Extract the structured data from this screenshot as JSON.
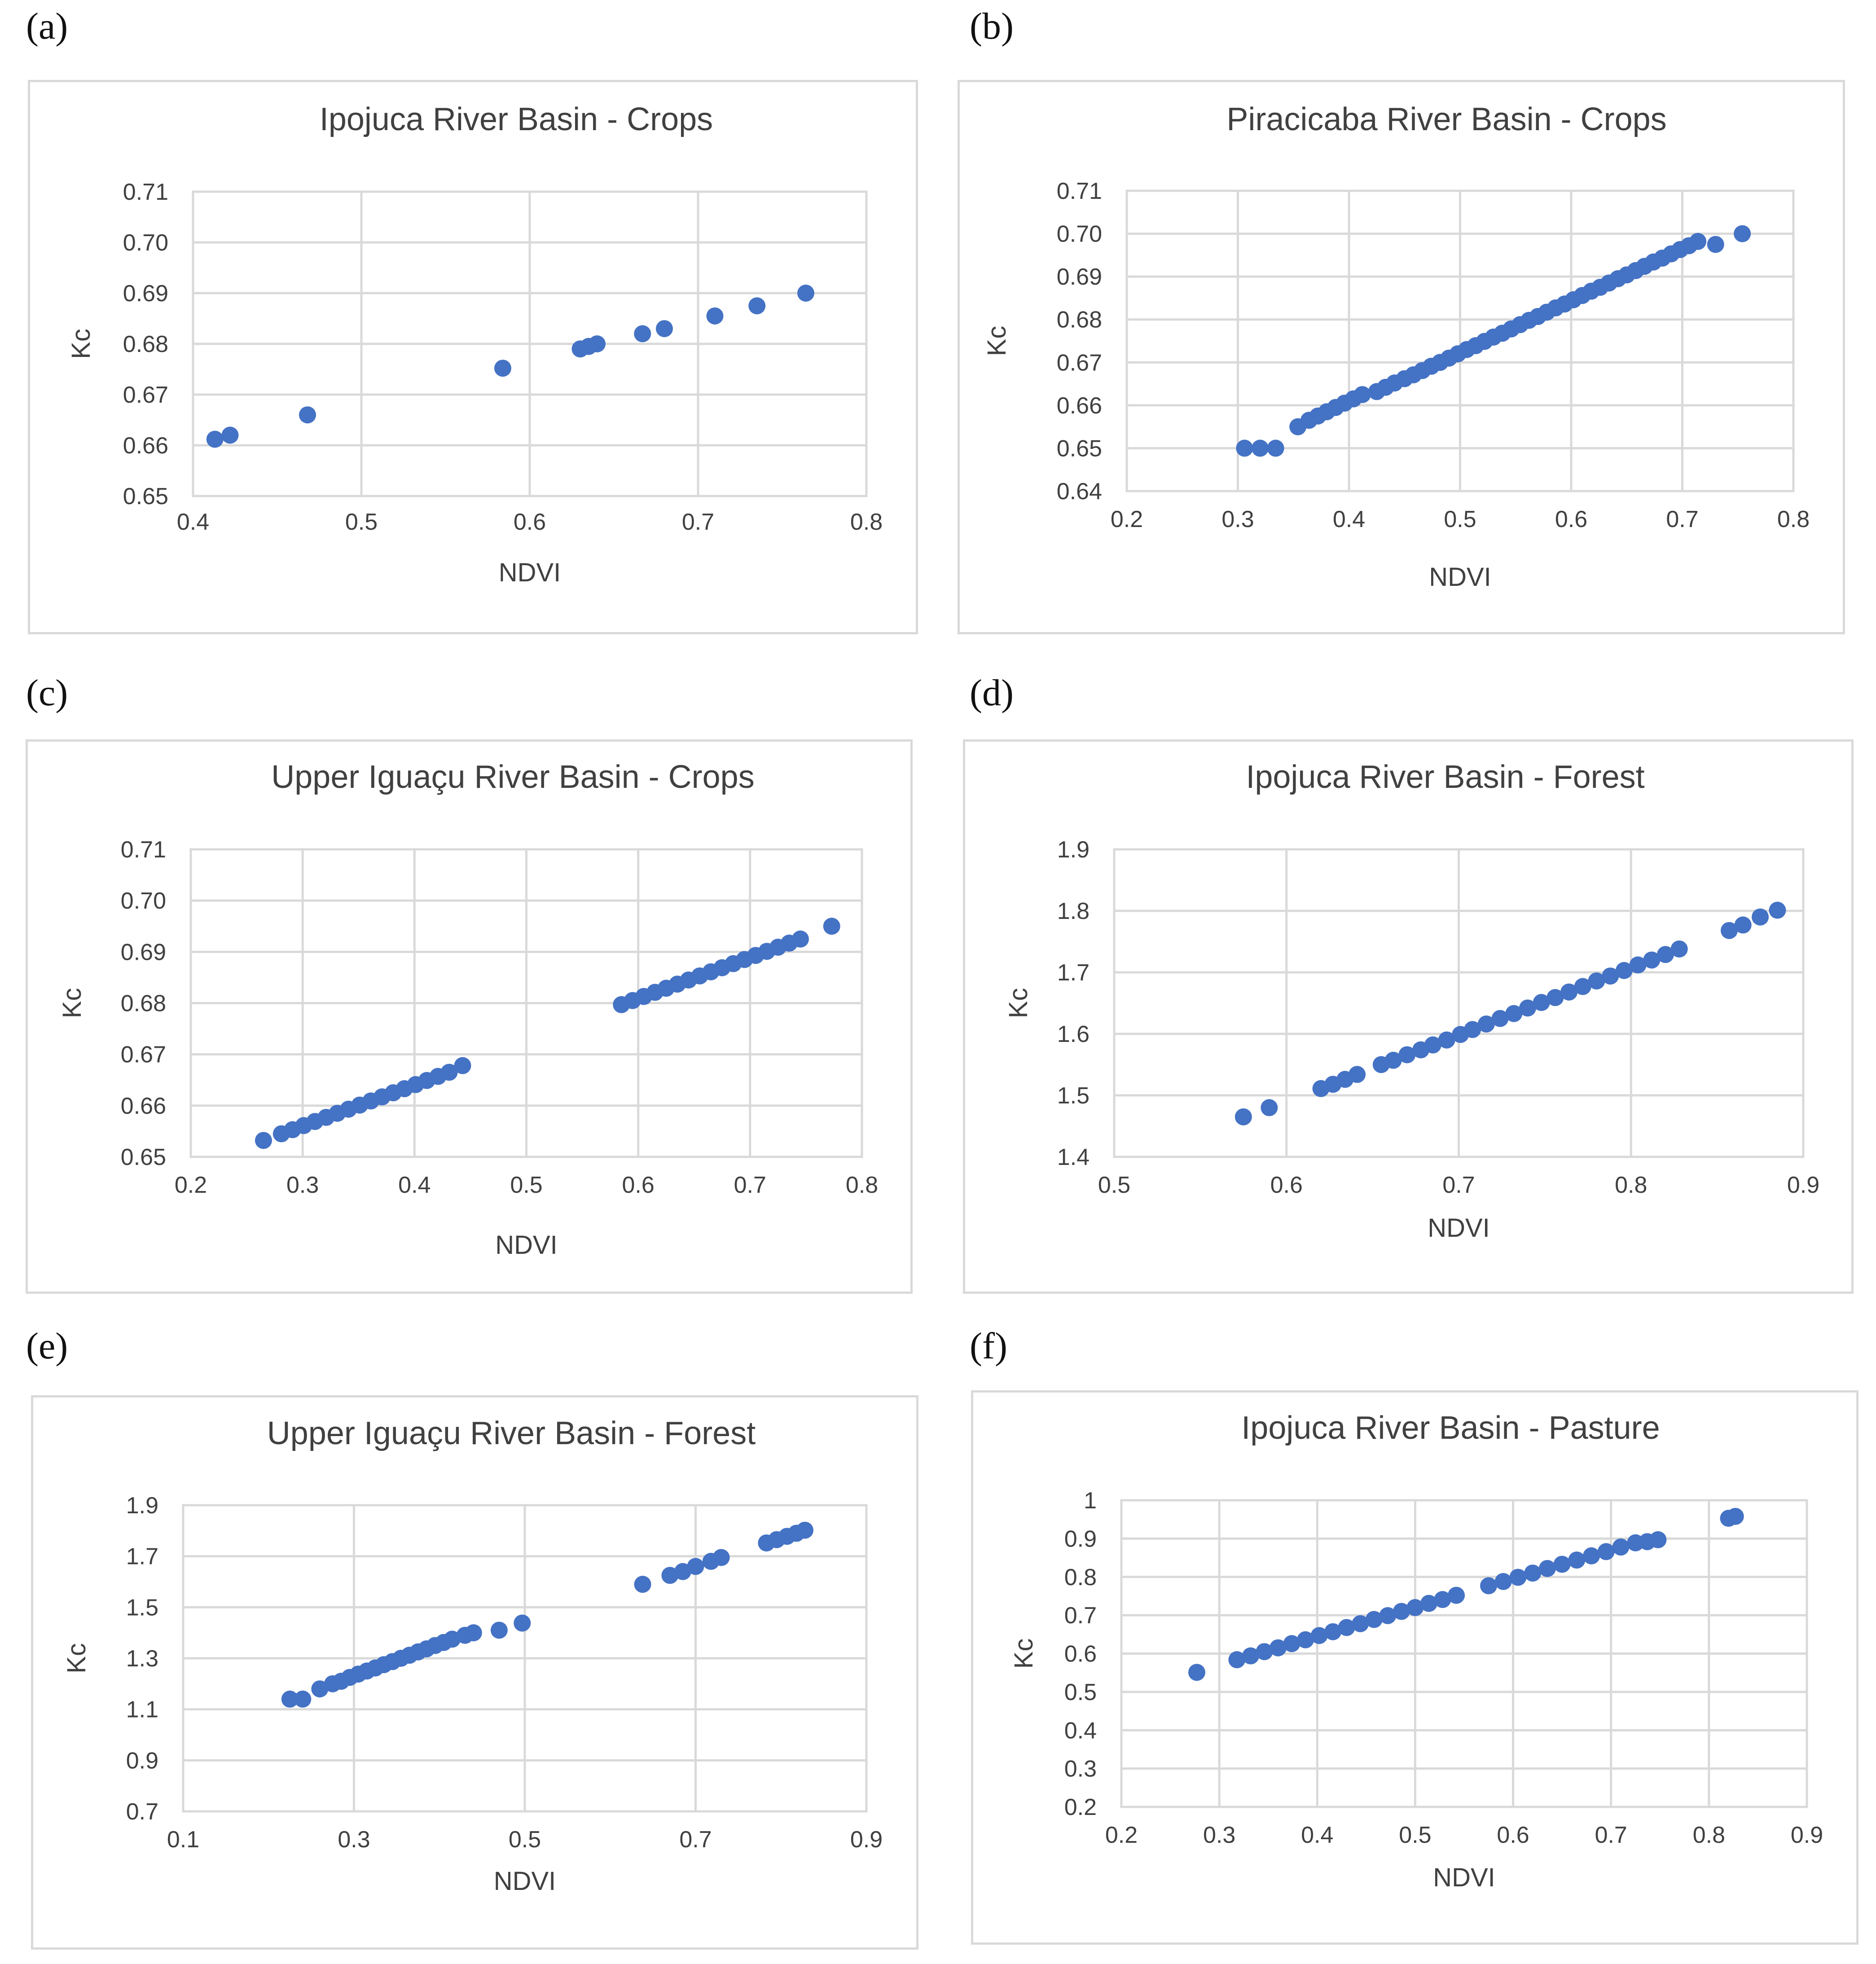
{
  "panel_letters": [
    "(a)",
    "(b)",
    "(c)",
    "(d)",
    "(e)",
    "(f)"
  ],
  "colors": {
    "marker": "#4472c4",
    "grid": "#d9d9d9",
    "text": "#404040"
  },
  "chart_data": [
    {
      "type": "scatter",
      "title": "Ipojuca River Basin - Crops",
      "xlabel": "NDVI",
      "ylabel": "Kc",
      "xlim": [
        0.4,
        0.8
      ],
      "ylim": [
        0.65,
        0.71
      ],
      "xticks": [
        0.4,
        0.5,
        0.6,
        0.7,
        0.8
      ],
      "xtick_labels": [
        "0.4",
        "0.5",
        "0.6",
        "0.7",
        "0.8"
      ],
      "yticks": [
        0.65,
        0.66,
        0.67,
        0.68,
        0.69,
        0.7,
        0.71
      ],
      "ytick_labels": [
        "0.65",
        "0.66",
        "0.67",
        "0.68",
        "0.69",
        "0.70",
        "0.71"
      ],
      "x": [
        0.413,
        0.422,
        0.468,
        0.584,
        0.63,
        0.635,
        0.64,
        0.667,
        0.68,
        0.71,
        0.735,
        0.764
      ],
      "y": [
        0.6612,
        0.662,
        0.666,
        0.6752,
        0.679,
        0.6795,
        0.68,
        0.682,
        0.683,
        0.6855,
        0.6875,
        0.69
      ]
    },
    {
      "type": "scatter",
      "title": "Piracicaba River Basin - Crops",
      "xlabel": "NDVI",
      "ylabel": "Kc",
      "xlim": [
        0.2,
        0.8
      ],
      "ylim": [
        0.64,
        0.71
      ],
      "xticks": [
        0.2,
        0.3,
        0.4,
        0.5,
        0.6,
        0.7,
        0.8
      ],
      "xtick_labels": [
        "0.2",
        "0.3",
        "0.4",
        "0.5",
        "0.6",
        "0.7",
        "0.8"
      ],
      "yticks": [
        0.64,
        0.65,
        0.66,
        0.67,
        0.68,
        0.69,
        0.7,
        0.71
      ],
      "ytick_labels": [
        "0.64",
        "0.65",
        "0.66",
        "0.67",
        "0.68",
        "0.69",
        "0.70",
        "0.71"
      ],
      "x": [
        0.306,
        0.32,
        0.334,
        0.354,
        0.364,
        0.372,
        0.38,
        0.388,
        0.396,
        0.404,
        0.412,
        0.425,
        0.433,
        0.441,
        0.45,
        0.458,
        0.466,
        0.474,
        0.482,
        0.49,
        0.498,
        0.506,
        0.514,
        0.522,
        0.53,
        0.538,
        0.546,
        0.554,
        0.562,
        0.57,
        0.578,
        0.586,
        0.594,
        0.602,
        0.61,
        0.618,
        0.626,
        0.634,
        0.642,
        0.65,
        0.658,
        0.666,
        0.674,
        0.682,
        0.69,
        0.698,
        0.706,
        0.714,
        0.73,
        0.754
      ],
      "y": [
        0.65,
        0.65,
        0.65,
        0.655,
        0.6565,
        0.6575,
        0.6585,
        0.6595,
        0.6605,
        0.6615,
        0.6625,
        0.6632,
        0.6642,
        0.6652,
        0.6662,
        0.6671,
        0.6681,
        0.6691,
        0.67,
        0.671,
        0.672,
        0.673,
        0.6739,
        0.6749,
        0.6759,
        0.6768,
        0.6778,
        0.6788,
        0.6798,
        0.6807,
        0.6817,
        0.6827,
        0.6836,
        0.6846,
        0.6856,
        0.6866,
        0.6875,
        0.6885,
        0.6895,
        0.6904,
        0.6914,
        0.6924,
        0.6934,
        0.6943,
        0.6953,
        0.6963,
        0.6972,
        0.6982,
        0.6975,
        0.7
      ]
    },
    {
      "type": "scatter",
      "title": "Upper Iguaçu River Basin - Crops",
      "xlabel": "NDVI",
      "ylabel": "Kc",
      "xlim": [
        0.2,
        0.8
      ],
      "ylim": [
        0.65,
        0.71
      ],
      "xticks": [
        0.2,
        0.3,
        0.4,
        0.5,
        0.6,
        0.7,
        0.8
      ],
      "xtick_labels": [
        "0.2",
        "0.3",
        "0.4",
        "0.5",
        "0.6",
        "0.7",
        "0.8"
      ],
      "yticks": [
        0.65,
        0.66,
        0.67,
        0.68,
        0.69,
        0.7,
        0.71
      ],
      "ytick_labels": [
        "0.65",
        "0.66",
        "0.67",
        "0.68",
        "0.69",
        "0.70",
        "0.71"
      ],
      "x": [
        0.265,
        0.281,
        0.291,
        0.301,
        0.311,
        0.321,
        0.331,
        0.341,
        0.351,
        0.361,
        0.371,
        0.381,
        0.391,
        0.401,
        0.411,
        0.421,
        0.431,
        0.443,
        0.585,
        0.595,
        0.605,
        0.615,
        0.625,
        0.635,
        0.645,
        0.655,
        0.665,
        0.675,
        0.685,
        0.695,
        0.705,
        0.715,
        0.725,
        0.735,
        0.745,
        0.773
      ],
      "y": [
        0.6532,
        0.6545,
        0.6553,
        0.6561,
        0.6569,
        0.6577,
        0.6585,
        0.6593,
        0.6601,
        0.6609,
        0.6617,
        0.6625,
        0.6633,
        0.6641,
        0.6649,
        0.6657,
        0.6665,
        0.6678,
        0.6797,
        0.6805,
        0.6813,
        0.6821,
        0.6829,
        0.6837,
        0.6845,
        0.6853,
        0.6861,
        0.6869,
        0.6877,
        0.6885,
        0.6893,
        0.6901,
        0.6909,
        0.6917,
        0.6925,
        0.695
      ]
    },
    {
      "type": "scatter",
      "title": "Ipojuca River Basin - Forest",
      "xlabel": "NDVI",
      "ylabel": "Kc",
      "xlim": [
        0.5,
        0.9
      ],
      "ylim": [
        1.4,
        1.9
      ],
      "xticks": [
        0.5,
        0.6,
        0.7,
        0.8,
        0.9
      ],
      "xtick_labels": [
        "0.5",
        "0.6",
        "0.7",
        "0.8",
        "0.9"
      ],
      "yticks": [
        1.4,
        1.5,
        1.6,
        1.7,
        1.8,
        1.9
      ],
      "ytick_labels": [
        "1.4",
        "1.5",
        "1.6",
        "1.7",
        "1.8",
        "1.9"
      ],
      "x": [
        0.575,
        0.59,
        0.62,
        0.627,
        0.634,
        0.641,
        0.655,
        0.662,
        0.67,
        0.678,
        0.685,
        0.693,
        0.701,
        0.708,
        0.716,
        0.724,
        0.732,
        0.74,
        0.748,
        0.756,
        0.764,
        0.772,
        0.78,
        0.788,
        0.796,
        0.804,
        0.812,
        0.82,
        0.828,
        0.857,
        0.865,
        0.875,
        0.885
      ],
      "y": [
        1.465,
        1.48,
        1.511,
        1.518,
        1.526,
        1.534,
        1.55,
        1.557,
        1.566,
        1.574,
        1.582,
        1.59,
        1.599,
        1.607,
        1.616,
        1.625,
        1.633,
        1.642,
        1.651,
        1.659,
        1.668,
        1.677,
        1.686,
        1.694,
        1.703,
        1.712,
        1.72,
        1.729,
        1.738,
        1.768,
        1.777,
        1.79,
        1.801
      ]
    },
    {
      "type": "scatter",
      "title": "Upper Iguaçu River Basin - Forest",
      "xlabel": "NDVI",
      "ylabel": "Kc",
      "xlim": [
        0.1,
        0.9
      ],
      "ylim": [
        0.7,
        1.9
      ],
      "xticks": [
        0.1,
        0.3,
        0.5,
        0.7,
        0.9
      ],
      "xtick_labels": [
        "0.1",
        "0.3",
        "0.5",
        "0.7",
        "0.9"
      ],
      "yticks": [
        0.7,
        0.9,
        1.1,
        1.3,
        1.5,
        1.7,
        1.9
      ],
      "ytick_labels": [
        "0.7",
        "0.9",
        "1.1",
        "1.3",
        "1.5",
        "1.7",
        "1.9"
      ],
      "x": [
        0.225,
        0.24,
        0.26,
        0.275,
        0.285,
        0.295,
        0.305,
        0.315,
        0.325,
        0.335,
        0.345,
        0.355,
        0.365,
        0.375,
        0.385,
        0.395,
        0.405,
        0.415,
        0.43,
        0.44,
        0.47,
        0.497,
        0.638,
        0.67,
        0.685,
        0.7,
        0.718,
        0.73,
        0.783,
        0.795,
        0.807,
        0.818,
        0.828
      ],
      "y": [
        1.14,
        1.14,
        1.18,
        1.2,
        1.21,
        1.225,
        1.238,
        1.25,
        1.262,
        1.275,
        1.287,
        1.3,
        1.312,
        1.325,
        1.337,
        1.35,
        1.362,
        1.375,
        1.39,
        1.4,
        1.41,
        1.438,
        1.59,
        1.625,
        1.64,
        1.66,
        1.68,
        1.695,
        1.752,
        1.765,
        1.778,
        1.79,
        1.802
      ]
    },
    {
      "type": "scatter",
      "title": "Ipojuca River Basin - Pasture",
      "xlabel": "NDVI",
      "ylabel": "Kc",
      "xlim": [
        0.2,
        0.9
      ],
      "ylim": [
        0.2,
        1.0
      ],
      "xticks": [
        0.2,
        0.3,
        0.4,
        0.5,
        0.6,
        0.7,
        0.8,
        0.9
      ],
      "xtick_labels": [
        "0.2",
        "0.3",
        "0.4",
        "0.5",
        "0.6",
        "0.7",
        "0.8",
        "0.9"
      ],
      "yticks": [
        0.2,
        0.3,
        0.4,
        0.5,
        0.6,
        0.7,
        0.8,
        0.9,
        1.0
      ],
      "ytick_labels": [
        "0.2",
        "0.3",
        "0.4",
        "0.5",
        "0.6",
        "0.7",
        "0.8",
        "0.9",
        "1"
      ],
      "x": [
        0.277,
        0.318,
        0.332,
        0.346,
        0.36,
        0.374,
        0.388,
        0.402,
        0.416,
        0.43,
        0.444,
        0.458,
        0.472,
        0.486,
        0.5,
        0.514,
        0.528,
        0.542,
        0.575,
        0.59,
        0.605,
        0.62,
        0.635,
        0.65,
        0.665,
        0.68,
        0.695,
        0.71,
        0.725,
        0.737,
        0.748,
        0.82,
        0.827
      ],
      "y": [
        0.551,
        0.584,
        0.594,
        0.605,
        0.615,
        0.626,
        0.636,
        0.647,
        0.657,
        0.668,
        0.678,
        0.689,
        0.699,
        0.71,
        0.72,
        0.731,
        0.741,
        0.752,
        0.777,
        0.788,
        0.799,
        0.81,
        0.822,
        0.833,
        0.844,
        0.855,
        0.866,
        0.878,
        0.889,
        0.892,
        0.897,
        0.953,
        0.958
      ]
    }
  ]
}
